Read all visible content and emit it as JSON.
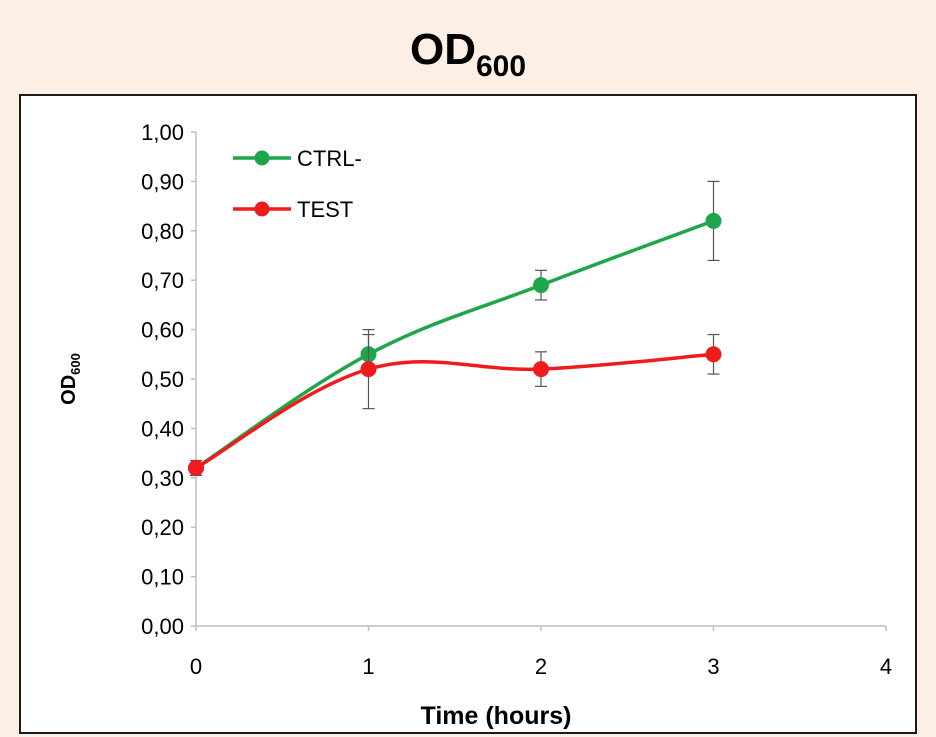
{
  "title_main": "OD",
  "title_sub": "600",
  "chart_data": {
    "type": "line",
    "title": "OD600",
    "xlabel": "Time (hours)",
    "ylabel_main": "OD",
    "ylabel_sub": "600",
    "xlim": [
      0,
      4
    ],
    "ylim": [
      0,
      1
    ],
    "x_ticks": [
      "0",
      "1",
      "2",
      "3",
      "4"
    ],
    "y_ticks": [
      "0,00",
      "0,10",
      "0,20",
      "0,30",
      "0,40",
      "0,50",
      "0,60",
      "0,70",
      "0,80",
      "0,90",
      "1,00"
    ],
    "grid": false,
    "legend_position": "top-left",
    "series": [
      {
        "name": "CTRL-",
        "color": "#1fa64b",
        "x": [
          0,
          1,
          2,
          3
        ],
        "y": [
          0.32,
          0.55,
          0.69,
          0.82
        ],
        "error": [
          0.015,
          0.04,
          0.03,
          0.08
        ]
      },
      {
        "name": "TEST",
        "color": "#ee1c1c",
        "x": [
          0,
          1,
          2,
          3
        ],
        "y": [
          0.32,
          0.52,
          0.52,
          0.55
        ],
        "error": [
          0.015,
          0.08,
          0.035,
          0.04
        ]
      }
    ]
  }
}
